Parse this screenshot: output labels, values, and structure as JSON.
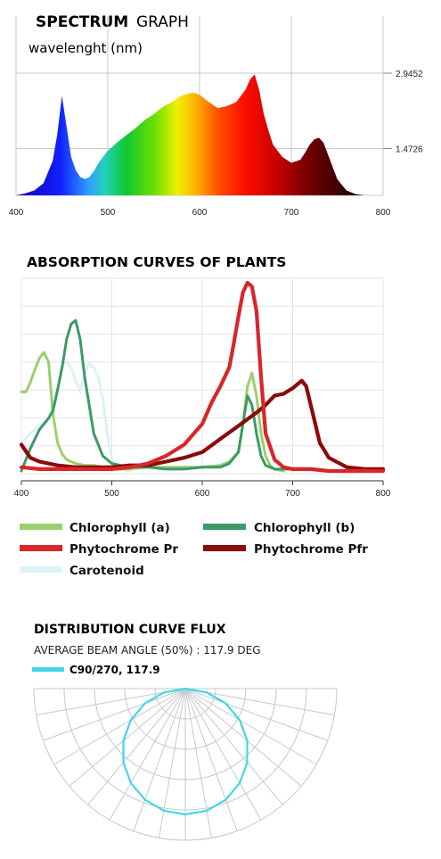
{
  "chart_data": [
    {
      "type": "area",
      "title_bold": "SPECTRUM",
      "title_light": "GRAPH",
      "subtitle": "wavelenght (nm)",
      "x_ticks": [
        "400",
        "500",
        "600",
        "700",
        "800"
      ],
      "y_ticks": [
        "2.9452",
        "1.4726"
      ],
      "xlim": [
        400,
        800
      ],
      "ylim": [
        0,
        2.9452
      ],
      "grid": true,
      "colors": {
        "fill_gradient": [
          "#1a00b0",
          "#0040ff",
          "#00c0ff",
          "#00d040",
          "#e0f000",
          "#ffb000",
          "#ff3000",
          "#c00000",
          "#500000",
          "#100000"
        ]
      },
      "series": [
        {
          "x": [
            400,
            410,
            420,
            430,
            440,
            445,
            450,
            455,
            460,
            465,
            470,
            475,
            480,
            485,
            490,
            495,
            500,
            510,
            520,
            530,
            540,
            550,
            560,
            570,
            580,
            590,
            595,
            600,
            610,
            620,
            630,
            640,
            650,
            655,
            660,
            665,
            670,
            675,
            680,
            690,
            700,
            710,
            715,
            720,
            725,
            730,
            735,
            740,
            750,
            760,
            770,
            780,
            790,
            800
          ],
          "y": [
            0,
            0.05,
            0.12,
            0.3,
            0.85,
            1.5,
            2.45,
            1.7,
            0.95,
            0.62,
            0.45,
            0.4,
            0.45,
            0.6,
            0.8,
            0.95,
            1.1,
            1.3,
            1.48,
            1.65,
            1.85,
            2.0,
            2.18,
            2.3,
            2.45,
            2.52,
            2.52,
            2.48,
            2.3,
            2.15,
            2.2,
            2.3,
            2.6,
            2.85,
            2.98,
            2.6,
            2.0,
            1.6,
            1.25,
            0.95,
            0.8,
            0.88,
            1.05,
            1.25,
            1.38,
            1.42,
            1.3,
            1.0,
            0.4,
            0.12,
            0.03,
            0,
            0,
            0
          ]
        }
      ]
    },
    {
      "type": "line",
      "title": "ABSORPTION CURVES OF PLANTS",
      "x_ticks": [
        "400",
        "500",
        "600",
        "700",
        "800"
      ],
      "xlim": [
        400,
        800
      ],
      "ylim": [
        0,
        1
      ],
      "grid": true,
      "legend_position": "bottom",
      "series": [
        {
          "name": "Chlorophyll (a)",
          "color": "#9ccf6e",
          "x": [
            400,
            405,
            410,
            415,
            420,
            425,
            430,
            435,
            440,
            445,
            450,
            460,
            470,
            480,
            490,
            500,
            520,
            540,
            560,
            580,
            600,
            620,
            630,
            640,
            645,
            650,
            655,
            660,
            665,
            670,
            675,
            680,
            690
          ],
          "y": [
            0.42,
            0.42,
            0.47,
            0.54,
            0.6,
            0.63,
            0.58,
            0.3,
            0.15,
            0.09,
            0.06,
            0.04,
            0.03,
            0.03,
            0.02,
            0.01,
            0.01,
            0.02,
            0.02,
            0.02,
            0.02,
            0.03,
            0.05,
            0.1,
            0.25,
            0.45,
            0.52,
            0.4,
            0.2,
            0.08,
            0.03,
            0.01,
            0.0
          ]
        },
        {
          "name": "Chlorophyll (b)",
          "color": "#3d9a66",
          "x": [
            400,
            410,
            420,
            430,
            435,
            440,
            445,
            450,
            455,
            460,
            465,
            470,
            480,
            490,
            500,
            520,
            540,
            560,
            580,
            600,
            610,
            620,
            630,
            640,
            645,
            650,
            655,
            660,
            665,
            670,
            680,
            690,
            700
          ],
          "y": [
            0.0,
            0.12,
            0.22,
            0.28,
            0.32,
            0.43,
            0.55,
            0.7,
            0.78,
            0.8,
            0.7,
            0.5,
            0.2,
            0.08,
            0.04,
            0.02,
            0.02,
            0.01,
            0.01,
            0.02,
            0.02,
            0.02,
            0.04,
            0.1,
            0.25,
            0.4,
            0.35,
            0.2,
            0.08,
            0.03,
            0.01,
            0.01,
            0.01
          ]
        },
        {
          "name": "Phytochrome Pr",
          "color": "#d8262b",
          "x": [
            400,
            420,
            440,
            460,
            480,
            500,
            520,
            540,
            560,
            580,
            600,
            610,
            620,
            630,
            635,
            640,
            645,
            650,
            655,
            660,
            665,
            670,
            680,
            690,
            700,
            720,
            740,
            760,
            780,
            800
          ],
          "y": [
            0.02,
            0.01,
            0.01,
            0.01,
            0.01,
            0.01,
            0.02,
            0.04,
            0.08,
            0.14,
            0.25,
            0.36,
            0.45,
            0.55,
            0.68,
            0.82,
            0.95,
            1.0,
            0.98,
            0.85,
            0.5,
            0.2,
            0.06,
            0.02,
            0.01,
            0.01,
            0.0,
            0.0,
            0.0,
            0.0
          ]
        },
        {
          "name": "Phytochrome Pfr",
          "color": "#8b0a0a",
          "x": [
            400,
            410,
            420,
            440,
            460,
            480,
            500,
            520,
            540,
            560,
            580,
            600,
            620,
            640,
            660,
            670,
            680,
            690,
            700,
            710,
            715,
            720,
            725,
            730,
            740,
            760,
            780,
            800
          ],
          "y": [
            0.14,
            0.07,
            0.05,
            0.03,
            0.02,
            0.02,
            0.02,
            0.03,
            0.03,
            0.05,
            0.07,
            0.1,
            0.17,
            0.24,
            0.31,
            0.35,
            0.4,
            0.41,
            0.44,
            0.48,
            0.45,
            0.35,
            0.25,
            0.15,
            0.07,
            0.02,
            0.01,
            0.01
          ]
        },
        {
          "name": "Carotenoid",
          "color": "#dcf2f6",
          "x": [
            400,
            410,
            420,
            430,
            440,
            445,
            450,
            455,
            460,
            465,
            470,
            475,
            480,
            485,
            490,
            495,
            500,
            510,
            520
          ],
          "y": [
            0.15,
            0.2,
            0.24,
            0.28,
            0.44,
            0.56,
            0.58,
            0.55,
            0.48,
            0.42,
            0.52,
            0.57,
            0.55,
            0.5,
            0.38,
            0.2,
            0.06,
            0.01,
            0.0
          ]
        }
      ]
    },
    {
      "type": "polar",
      "title": "DISTRIBUTION CURVE FLUX",
      "subtitle": "AVERAGE BEAM ANGLE  (50%) : 117.9 DEG",
      "series": [
        {
          "name": "C90/270, 117.9",
          "color": "#40d8e6"
        }
      ]
    }
  ]
}
